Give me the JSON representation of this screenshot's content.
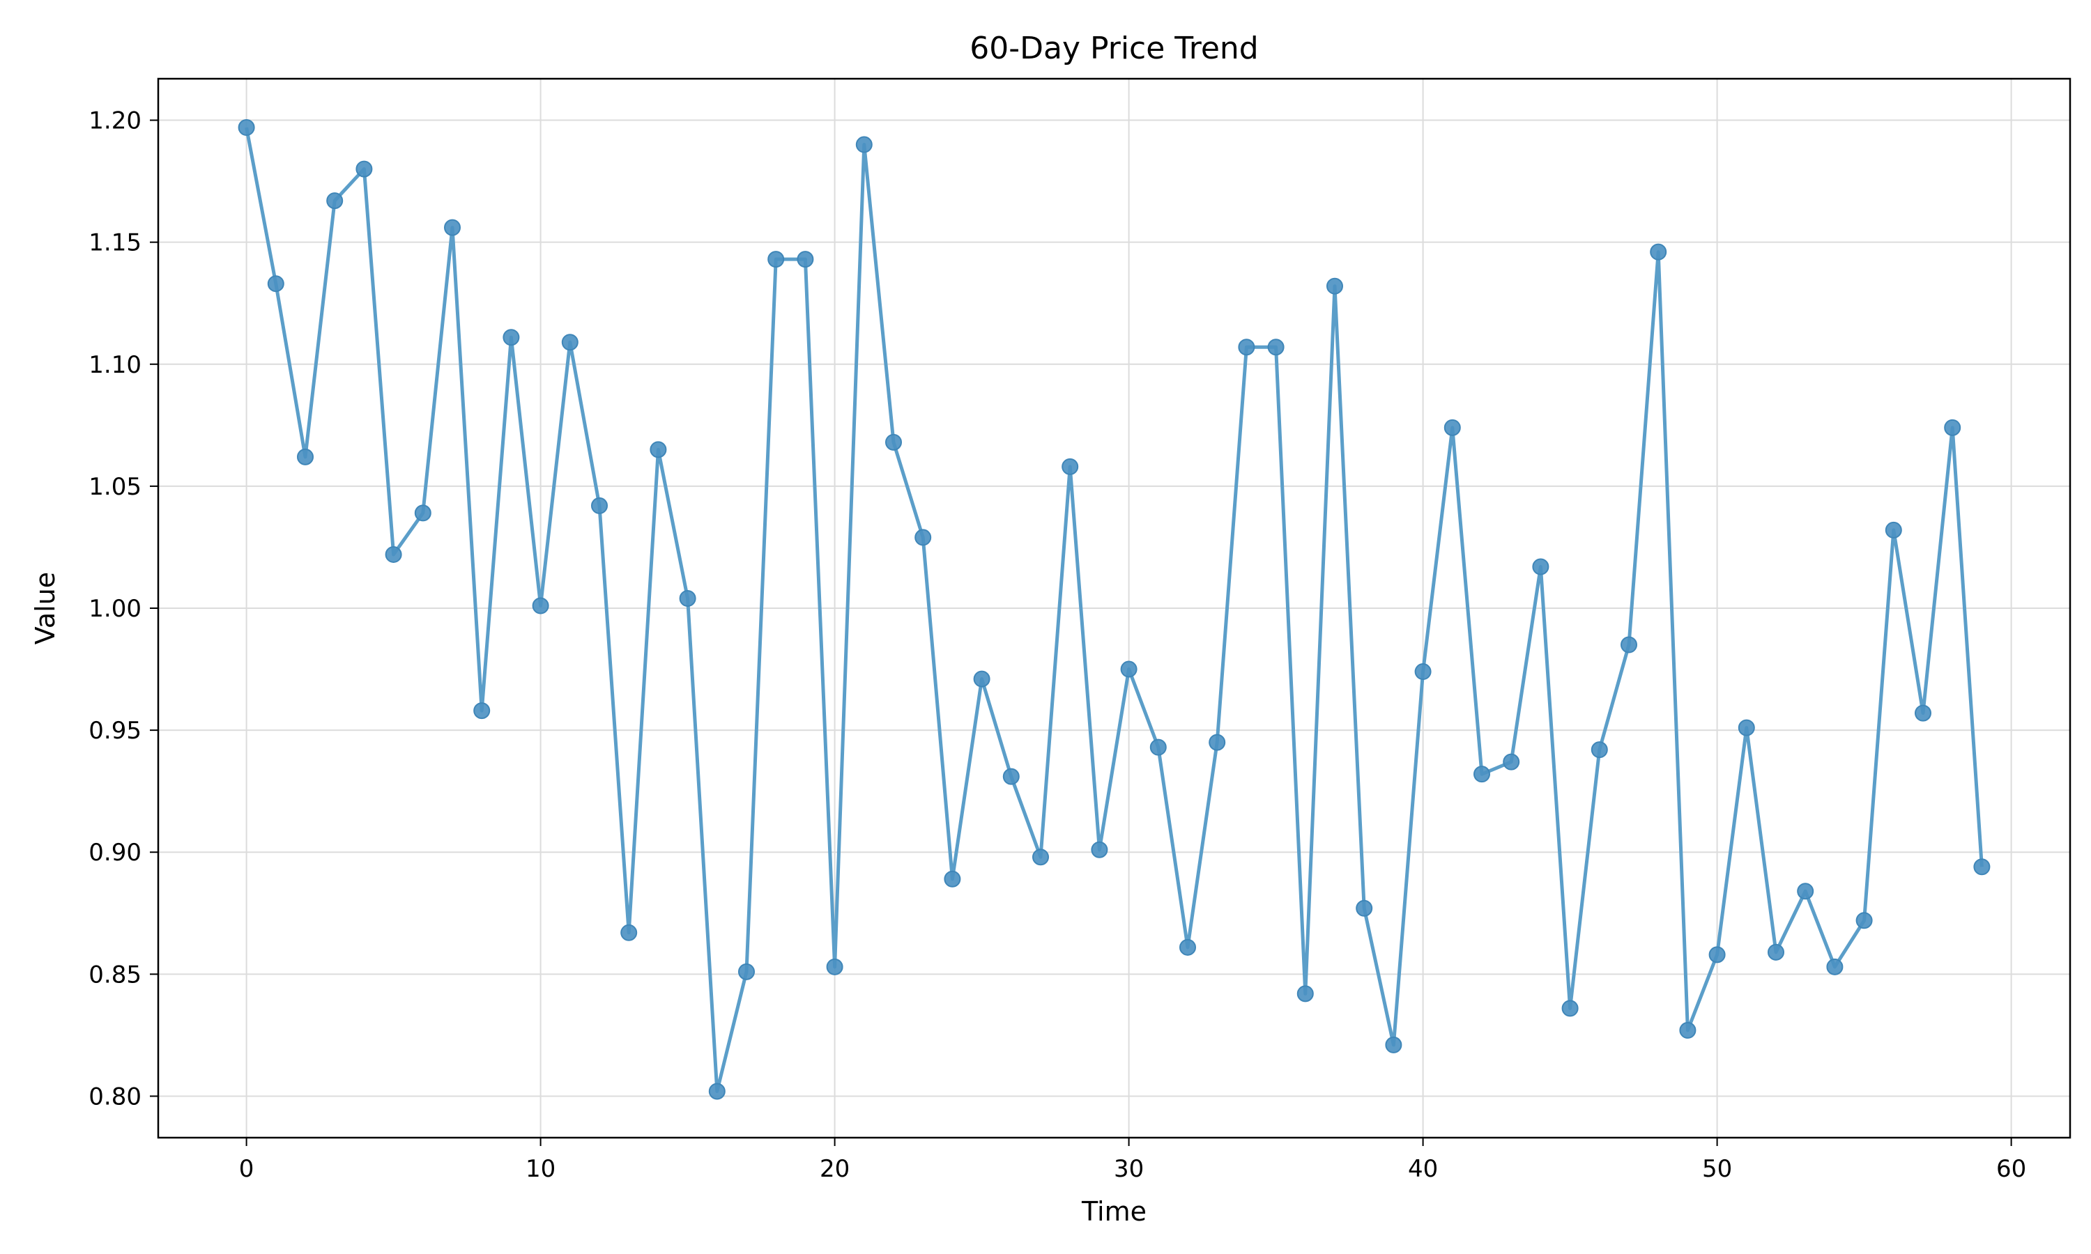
{
  "chart_data": {
    "type": "line",
    "title": "60-Day Price Trend",
    "xlabel": "Time",
    "ylabel": "Value",
    "xlim": [
      -3,
      62
    ],
    "ylim": [
      0.783,
      1.217
    ],
    "xticks": [
      0,
      10,
      20,
      30,
      40,
      50,
      60
    ],
    "xtick_labels": [
      "0",
      "10",
      "20",
      "30",
      "40",
      "50",
      "60"
    ],
    "yticks": [
      0.8,
      0.85,
      0.9,
      0.95,
      1.0,
      1.05,
      1.1,
      1.15,
      1.2
    ],
    "ytick_labels": [
      "0.80",
      "0.85",
      "0.90",
      "0.95",
      "1.00",
      "1.05",
      "1.10",
      "1.15",
      "1.20"
    ],
    "grid": true,
    "line_color": "#5b9ec9",
    "marker_color": "#4a90c2",
    "series": [
      {
        "x": [
          0,
          1,
          2,
          3,
          4,
          5,
          6,
          7,
          8,
          9,
          10,
          11,
          12,
          13,
          14,
          15,
          16,
          17,
          18,
          19,
          20,
          21,
          22,
          23,
          24,
          25,
          26,
          27,
          28,
          29,
          30,
          31,
          32,
          33,
          34,
          35,
          36,
          37,
          38,
          39,
          40,
          41,
          42,
          43,
          44,
          45,
          46,
          47,
          48,
          49,
          50,
          51,
          52,
          53,
          54,
          55,
          56,
          57,
          58,
          59
        ],
        "values": [
          1.197,
          1.133,
          1.062,
          1.167,
          1.18,
          1.022,
          1.039,
          1.156,
          0.958,
          1.111,
          1.001,
          1.109,
          1.042,
          0.867,
          1.065,
          1.004,
          0.802,
          0.851,
          1.143,
          1.143,
          0.853,
          1.19,
          1.068,
          1.029,
          0.889,
          0.971,
          0.931,
          0.898,
          1.058,
          0.901,
          0.975,
          0.943,
          0.861,
          0.945,
          1.107,
          1.107,
          0.842,
          1.132,
          0.877,
          0.821,
          0.974,
          1.074,
          0.932,
          0.937,
          1.017,
          0.836,
          0.942,
          0.985,
          1.146,
          0.827,
          0.858,
          0.951,
          0.859,
          0.884,
          0.853,
          0.872,
          1.032,
          0.957,
          1.074,
          0.894
        ]
      }
    ]
  }
}
